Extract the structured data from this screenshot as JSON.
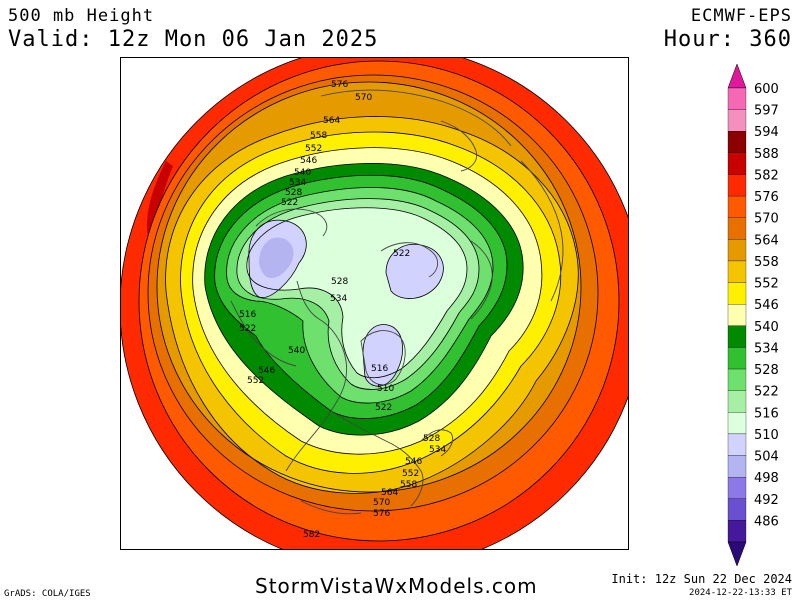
{
  "header": {
    "title": "500 mb Height",
    "valid": "Valid: 12z Mon 06 Jan 2025",
    "model": "ECMWF-EPS",
    "hour": "Hour: 360"
  },
  "footer": {
    "grads": "GrADS: COLA/IGES",
    "site": "StormVistaWxModels.com",
    "init": "Init: 12z Sun 22 Dec 2024",
    "generated": "2024-12-22-13:33 ET"
  },
  "colorbar": {
    "labels": [
      "600",
      "597",
      "594",
      "588",
      "582",
      "576",
      "570",
      "564",
      "558",
      "552",
      "546",
      "540",
      "534",
      "528",
      "522",
      "516",
      "510",
      "504",
      "498",
      "492",
      "486"
    ],
    "colors": [
      "#f569b4",
      "#f58fbe",
      "#8c0000",
      "#c80000",
      "#ff2a00",
      "#ff5a00",
      "#e87000",
      "#e59b00",
      "#f5c400",
      "#fff000",
      "#ffffb0",
      "#008a00",
      "#30c030",
      "#6ee06e",
      "#a6f0a6",
      "#dcffdc",
      "#d2d2ff",
      "#b4b4f0",
      "#8c78e6",
      "#6a50d0",
      "#46189c"
    ],
    "top_arrow_color": "#e0189c",
    "bottom_arrow_color": "#2a0a78"
  },
  "map": {
    "contour_labels": [
      "576",
      "570",
      "564",
      "558",
      "552",
      "546",
      "540",
      "534",
      "528",
      "522",
      "516",
      "522",
      "528",
      "534",
      "522",
      "510",
      "516",
      "522",
      "528",
      "534",
      "540",
      "546",
      "552",
      "546",
      "552",
      "558",
      "564",
      "570",
      "576",
      "582"
    ]
  }
}
